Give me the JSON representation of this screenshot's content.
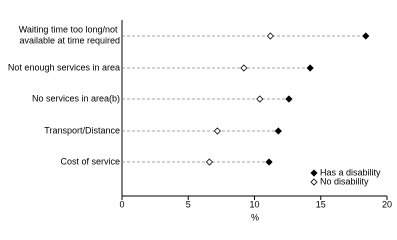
{
  "chart_data": {
    "type": "dot",
    "categories": [
      "Waiting time too long/not available at time required",
      "Not enough services in area",
      "No services in area(b)",
      "Transport/Distance",
      "Cost of service"
    ],
    "series": [
      {
        "name": "Has a disability",
        "color": "#000000",
        "values": [
          18.4,
          14.2,
          12.6,
          11.8,
          11.1
        ]
      },
      {
        "name": "No disability",
        "color": "#ffffff",
        "values": [
          11.2,
          9.2,
          10.4,
          7.2,
          6.6
        ]
      }
    ],
    "xlim": [
      0,
      20
    ],
    "xticks": [
      0,
      5,
      10,
      15,
      20
    ],
    "xlabel": "%",
    "legend": "lower right"
  }
}
